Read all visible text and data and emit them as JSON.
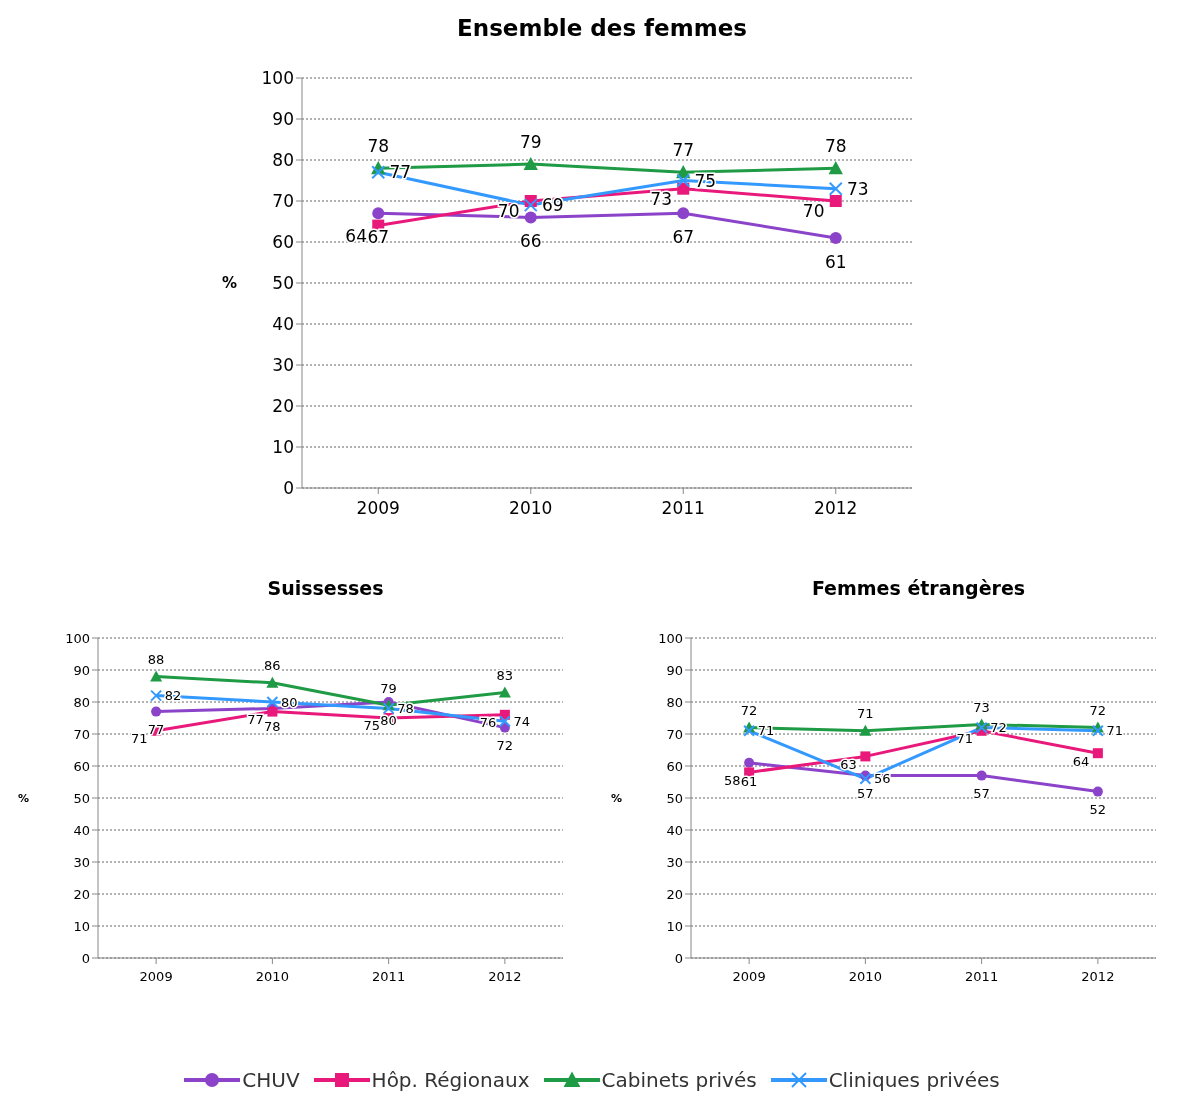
{
  "chart_data": [
    {
      "type": "line",
      "title": "Ensemble des femmes",
      "ylabel": "%",
      "categories": [
        "2009",
        "2010",
        "2011",
        "2012"
      ],
      "ylim": [
        0,
        100
      ],
      "yticks": [
        0,
        10,
        20,
        30,
        40,
        50,
        60,
        70,
        80,
        90,
        100
      ],
      "grid": "y",
      "data_labels": true,
      "legend": "bottom",
      "series": [
        {
          "name": "CHUV",
          "color": "#8b44c9",
          "marker": "circle",
          "values": [
            67,
            66,
            67,
            61
          ]
        },
        {
          "name": "Hôp. Régionaux",
          "color": "#e8197a",
          "marker": "square",
          "values": [
            64,
            70,
            73,
            70
          ]
        },
        {
          "name": "Cabinets privés",
          "color": "#1f9a45",
          "marker": "triangle",
          "values": [
            78,
            79,
            77,
            78
          ]
        },
        {
          "name": "Cliniques privées",
          "color": "#3399ff",
          "marker": "cross",
          "values": [
            77,
            69,
            75,
            73
          ]
        }
      ]
    },
    {
      "type": "line",
      "title": "Suissesses",
      "ylabel": "%",
      "categories": [
        "2009",
        "2010",
        "2011",
        "2012"
      ],
      "ylim": [
        0,
        100
      ],
      "yticks": [
        0,
        10,
        20,
        30,
        40,
        50,
        60,
        70,
        80,
        90,
        100
      ],
      "grid": "y",
      "data_labels": true,
      "series": [
        {
          "color": "#8b44c9",
          "marker": "circle",
          "values": [
            77,
            78,
            80,
            72
          ]
        },
        {
          "color": "#e8197a",
          "marker": "square",
          "values": [
            71,
            77,
            75,
            76
          ]
        },
        {
          "color": "#1f9a45",
          "marker": "triangle",
          "values": [
            88,
            86,
            79,
            83
          ]
        },
        {
          "color": "#3399ff",
          "marker": "cross",
          "values": [
            82,
            80,
            78,
            74
          ]
        }
      ]
    },
    {
      "type": "line",
      "title": "Femmes étrangères",
      "ylabel": "%",
      "categories": [
        "2009",
        "2010",
        "2011",
        "2012"
      ],
      "ylim": [
        0,
        100
      ],
      "yticks": [
        0,
        10,
        20,
        30,
        40,
        50,
        60,
        70,
        80,
        90,
        100
      ],
      "grid": "y",
      "data_labels": true,
      "series": [
        {
          "color": "#8b44c9",
          "marker": "circle",
          "values": [
            61,
            57,
            57,
            52
          ]
        },
        {
          "color": "#e8197a",
          "marker": "square",
          "values": [
            58,
            63,
            71,
            64
          ]
        },
        {
          "color": "#1f9a45",
          "marker": "triangle",
          "values": [
            72,
            71,
            73,
            72
          ]
        },
        {
          "color": "#3399ff",
          "marker": "cross",
          "values": [
            71,
            56,
            72,
            71
          ]
        }
      ]
    }
  ]
}
